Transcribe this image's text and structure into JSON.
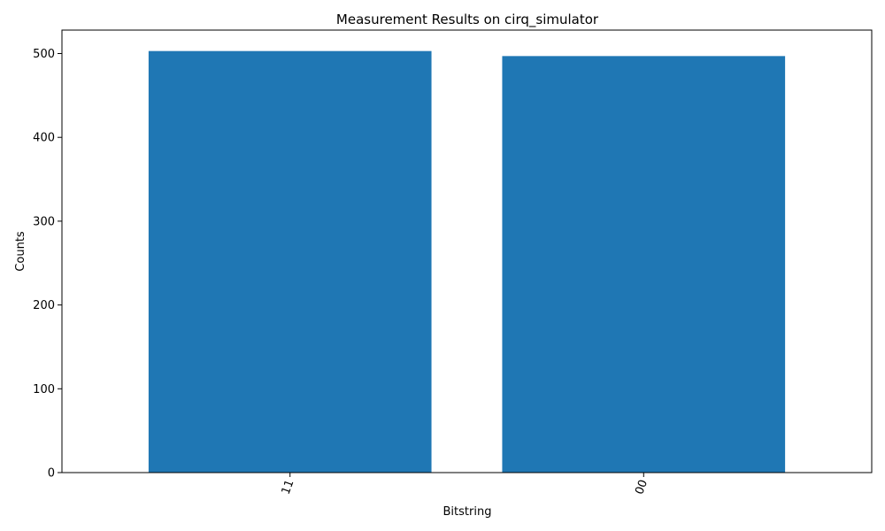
{
  "chart_data": {
    "type": "bar",
    "title": "Measurement Results on cirq_simulator",
    "xlabel": "Bitstring",
    "ylabel": "Counts",
    "categories": [
      "11",
      "00"
    ],
    "values": [
      503,
      497
    ],
    "ylim": [
      0,
      528
    ],
    "yticks": [
      0,
      100,
      200,
      300,
      400,
      500
    ],
    "ytick_labels": [
      "0",
      "100",
      "200",
      "300",
      "400",
      "500"
    ],
    "xtick_rotation_deg": 70,
    "grid": false,
    "legend": "none",
    "colors": {
      "bar": "#1f77b4",
      "axis": "#000000",
      "background": "#ffffff"
    }
  }
}
